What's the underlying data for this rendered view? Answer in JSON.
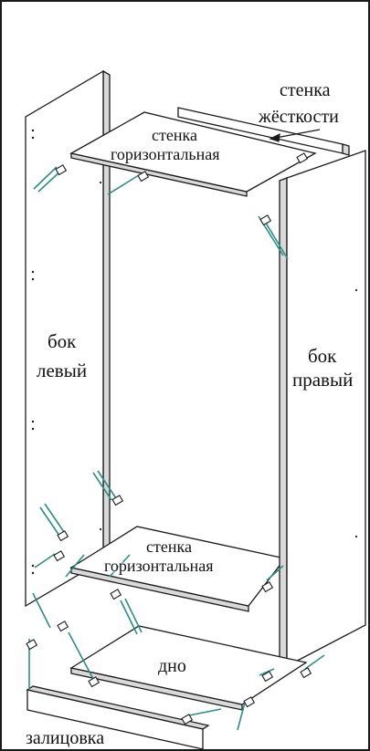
{
  "labels": {
    "rigidity_line1": "стенка",
    "rigidity_line2": "жёсткости",
    "top_shelf_line1": "стенка",
    "top_shelf_line2": "горизонтальная",
    "left_line1": "бок",
    "left_line2": "левый",
    "right_line1": "бок",
    "right_line2": "правый",
    "mid_shelf_line1": "стенка",
    "mid_shelf_line2": "горизонтальная",
    "bottom": "дно",
    "plinth": "залицовка"
  },
  "colors": {
    "line": "#1a1a1a",
    "connector": "#2a8f86",
    "panel_fill": "#ffffff",
    "shade_fill": "#d9d9d9"
  }
}
